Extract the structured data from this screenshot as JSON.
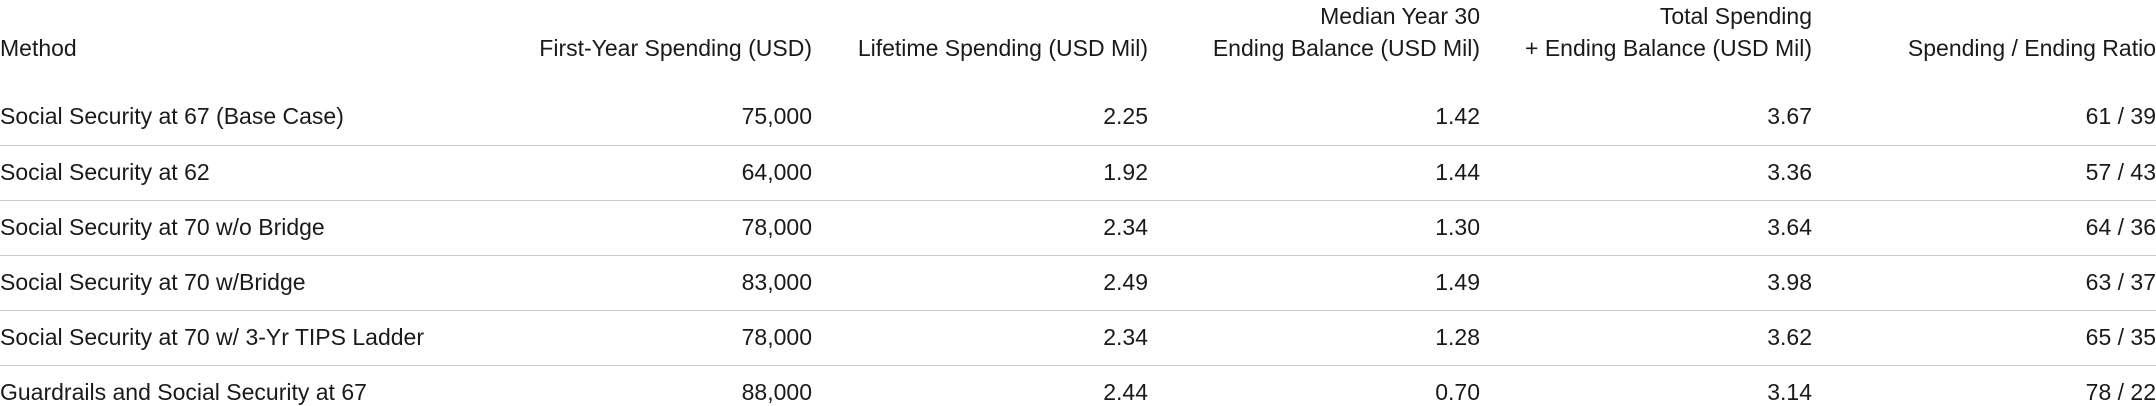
{
  "chart_data": {
    "type": "table",
    "columns": [
      {
        "id": "method",
        "lines": [
          "Method"
        ],
        "align": "left"
      },
      {
        "id": "first_year_spending_usd",
        "lines": [
          "First-Year Spending (USD)"
        ],
        "align": "right"
      },
      {
        "id": "lifetime_spending_usd_mil",
        "lines": [
          "Lifetime Spending (USD Mil)"
        ],
        "align": "right"
      },
      {
        "id": "median_year_30_ending_balance_usd_mil",
        "lines": [
          "Median Year 30",
          "Ending Balance (USD Mil)"
        ],
        "align": "right"
      },
      {
        "id": "total_spending_plus_ending_balance_usd_mil",
        "lines": [
          "Total Spending",
          "+ Ending Balance (USD Mil)"
        ],
        "align": "right"
      },
      {
        "id": "spending_ending_ratio",
        "lines": [
          "Spending / Ending Ratio"
        ],
        "align": "right"
      }
    ],
    "rows": [
      [
        "Social Security at 67 (Base Case)",
        "75,000",
        "2.25",
        "1.42",
        "3.67",
        "61 / 39"
      ],
      [
        "Social Security at 62",
        "64,000",
        "1.92",
        "1.44",
        "3.36",
        "57 / 43"
      ],
      [
        "Social Security at 70 w/o Bridge",
        "78,000",
        "2.34",
        "1.30",
        "3.64",
        "64 / 36"
      ],
      [
        "Social Security at 70 w/Bridge",
        "83,000",
        "2.49",
        "1.49",
        "3.98",
        "63 / 37"
      ],
      [
        "Social Security at 70 w/ 3-Yr TIPS Ladder",
        "78,000",
        "2.34",
        "1.28",
        "3.62",
        "65 / 35"
      ],
      [
        "Guardrails and Social Security at 67",
        "88,000",
        "2.44",
        "0.70",
        "3.14",
        "78 / 22"
      ]
    ]
  },
  "colors": {
    "text": "#1a1a1a",
    "divider": "#cccccc",
    "background": "#ffffff"
  }
}
